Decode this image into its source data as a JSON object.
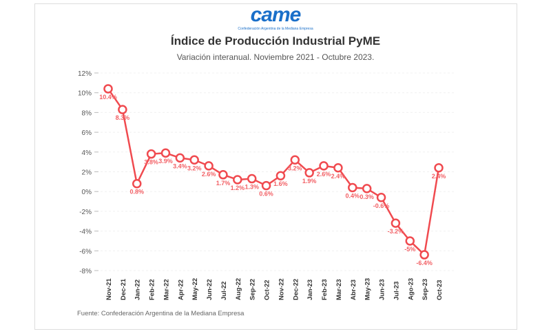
{
  "logo": {
    "text": "came",
    "subtitle": "Confederación Argentina de la Mediana Empresa"
  },
  "chart_data": {
    "type": "line",
    "title": "Índice de Producción Industrial PyME",
    "subtitle": "Variación interanual. Noviembre 2021 - Octubre 2023.",
    "source": "Fuente: Confederación Argentina de la Mediana Empresa",
    "categories": [
      "Nov-21",
      "Dec-21",
      "Jan-22",
      "Feb-22",
      "Mar-22",
      "Apr-22",
      "May-22",
      "Jun-22",
      "Jul-22",
      "Aug-22",
      "Sep-22",
      "Oct-22",
      "Nov-22",
      "Dec-22",
      "Jan-23",
      "Feb-23",
      "Mar-23",
      "Abr-23",
      "May-23",
      "Jun-23",
      "Jul-23",
      "Ago-23",
      "Sep-23",
      "Oct-23"
    ],
    "values": [
      10.4,
      8.3,
      0.8,
      3.8,
      3.9,
      3.4,
      3.2,
      2.6,
      1.7,
      1.2,
      1.3,
      0.6,
      1.6,
      3.2,
      1.9,
      2.6,
      2.4,
      0.4,
      0.3,
      -0.6,
      -3.2,
      -5,
      -6.4,
      2.4
    ],
    "labels": [
      "10.4%",
      "8.3%",
      "0.8%",
      "3.8%",
      "3.9%",
      "3.4%",
      "3.2%",
      "2.6%",
      "1.7%",
      "1.2%",
      "1.3%",
      "0.6%",
      "1.6%",
      "3.2%",
      "1.9%",
      "2.6%",
      "2.4%",
      "0.4%",
      "0.3%",
      "-0.6%",
      "-3.2%",
      "-5%",
      "-6.4%",
      "2.4%"
    ],
    "yticks": [
      12,
      10,
      8,
      6,
      4,
      2,
      0,
      -2,
      -4,
      -6,
      -8
    ],
    "ytick_labels": [
      "12%",
      "10%",
      "8%",
      "6%",
      "4%",
      "2%",
      "0%",
      "-2%",
      "-4%",
      "-6%",
      "-8%"
    ],
    "ylim": [
      -8,
      12
    ],
    "xlabel": "",
    "ylabel": "",
    "grid": true,
    "color": "#f04a4f"
  }
}
